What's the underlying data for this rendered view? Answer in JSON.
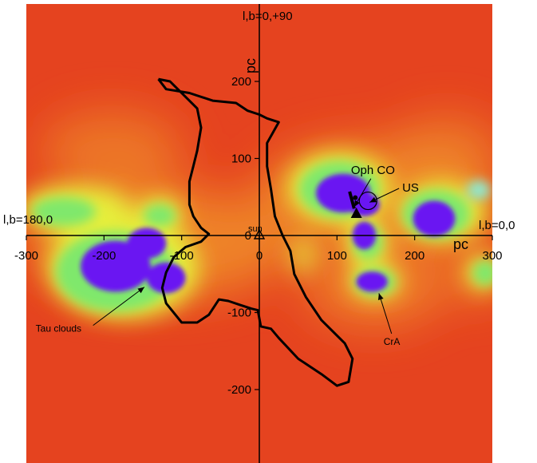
{
  "chart_data": {
    "type": "heatmap",
    "title": "",
    "xlabel": "pc",
    "ylabel": "pc",
    "xlim": [
      -300,
      300
    ],
    "ylim": [
      -300,
      300
    ],
    "x_ticks": [
      -300,
      -200,
      -100,
      0,
      100,
      200,
      300
    ],
    "y_ticks": [
      200,
      100,
      0,
      -100,
      -200
    ],
    "grid": false,
    "colors": {
      "background": "#e5431f",
      "warm": "#f08a2a",
      "yellow": "#e6ee3a",
      "green": "#7fe86c",
      "cyan": "#8ee8d0",
      "dense": "#6a16f2",
      "contour": "#000000"
    },
    "direction_labels": {
      "left": "l,b=180,0",
      "right": "l,b=0,0",
      "top": "l,b=0,+90"
    },
    "sun_label": "sun",
    "dense_clouds": [
      {
        "name": "Tau clouds (a)",
        "cx": -185,
        "cy": -40,
        "rx": 45,
        "ry": 33
      },
      {
        "name": "Tau clouds (b)",
        "cx": -145,
        "cy": -10,
        "rx": 25,
        "ry": 20
      },
      {
        "name": "Tau clouds (c)",
        "cx": -120,
        "cy": -55,
        "rx": 25,
        "ry": 20
      },
      {
        "name": "Oph CO",
        "cx": 108,
        "cy": 55,
        "rx": 35,
        "ry": 25
      },
      {
        "name": "US region",
        "cx": 135,
        "cy": 40,
        "rx": 20,
        "ry": 15
      },
      {
        "name": "cloud 130,0",
        "cx": 135,
        "cy": 0,
        "rx": 15,
        "ry": 18
      },
      {
        "name": "cloud 225,20",
        "cx": 225,
        "cy": 22,
        "rx": 27,
        "ry": 23
      },
      {
        "name": "CrA",
        "cx": 145,
        "cy": -60,
        "rx": 20,
        "ry": 13
      }
    ],
    "contour": [
      [
        -130,
        203
      ],
      [
        -115,
        200
      ],
      [
        -110,
        195
      ],
      [
        -95,
        180
      ],
      [
        -80,
        165
      ],
      [
        -75,
        140
      ],
      [
        -80,
        110
      ],
      [
        -85,
        90
      ],
      [
        -90,
        70
      ],
      [
        -90,
        40
      ],
      [
        -85,
        25
      ],
      [
        -75,
        10
      ],
      [
        -65,
        2
      ],
      [
        -75,
        -8
      ],
      [
        -95,
        -15
      ],
      [
        -110,
        -28
      ],
      [
        -120,
        -48
      ],
      [
        -125,
        -68
      ],
      [
        -120,
        -88
      ],
      [
        -100,
        -113
      ],
      [
        -80,
        -113
      ],
      [
        -65,
        -103
      ],
      [
        -52,
        -83
      ],
      [
        -40,
        -85
      ],
      [
        -25,
        -90
      ],
      [
        -10,
        -95
      ],
      [
        -2,
        -97
      ],
      [
        2,
        -118
      ],
      [
        15,
        -121
      ],
      [
        25,
        -133
      ],
      [
        50,
        -160
      ],
      [
        80,
        -180
      ],
      [
        100,
        -195
      ],
      [
        115,
        -190
      ],
      [
        120,
        -160
      ],
      [
        110,
        -140
      ],
      [
        80,
        -110
      ],
      [
        60,
        -80
      ],
      [
        45,
        -50
      ],
      [
        40,
        -20
      ],
      [
        30,
        0
      ],
      [
        20,
        25
      ],
      [
        15,
        60
      ],
      [
        10,
        90
      ],
      [
        10,
        120
      ],
      [
        25,
        147
      ],
      [
        10,
        152
      ],
      [
        0,
        157
      ],
      [
        -15,
        162
      ],
      [
        -30,
        172
      ],
      [
        -60,
        175
      ],
      [
        -90,
        185
      ],
      [
        -120,
        190
      ],
      [
        -130,
        203
      ]
    ],
    "points": [
      {
        "name": "Sun",
        "x": 0,
        "y": 0,
        "marker": "open-triangle"
      },
      {
        "name": "Oph CO",
        "x": 125,
        "y": 28,
        "marker": "filled-triangle"
      },
      {
        "name": "US",
        "x": 140,
        "y": 45,
        "marker": "open-circle"
      }
    ],
    "annotations": [
      {
        "text": "Tau clouds",
        "tx": -288,
        "ty": -125,
        "ax": -148,
        "ay": -67,
        "size": 12
      },
      {
        "text": "Oph CO",
        "tx": 118,
        "ty": 80,
        "ax": 122,
        "ay": 37,
        "size": 15
      },
      {
        "text": "US",
        "tx": 184,
        "ty": 57,
        "ax": 142,
        "ay": 43,
        "size": 15
      },
      {
        "text": "CrA",
        "tx": 160,
        "ty": -142,
        "ax": 154,
        "ay": -75,
        "size": 12
      }
    ]
  }
}
